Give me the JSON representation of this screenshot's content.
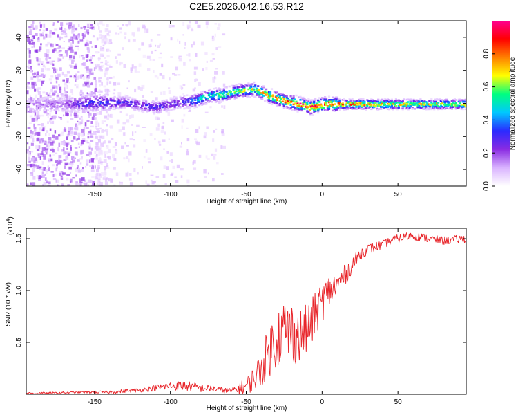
{
  "title": "C2E5.2026.042.16.53.R12",
  "chart_data": [
    {
      "type": "heatmap",
      "name": "spectrogram",
      "xlabel": "Height of straight line (km)",
      "ylabel": "Frequency (Hz)",
      "xlim": [
        -195,
        95
      ],
      "ylim": [
        -50,
        50
      ],
      "xticks": [
        -150,
        -100,
        -50,
        0,
        50
      ],
      "xtick_labels": [
        "-150",
        "-100",
        "-50",
        "0",
        "50"
      ],
      "yticks": [
        -40,
        -20,
        0,
        20,
        40
      ],
      "ytick_labels": [
        "-40",
        "-20",
        "0",
        "20",
        "40"
      ],
      "colorbar": {
        "label": "Normalized spectral amplitude",
        "range": [
          0,
          1
        ],
        "ticks": [
          0.0,
          0.2,
          0.4,
          0.6,
          0.8
        ],
        "tick_labels": [
          "0.0",
          "0.2",
          "0.4",
          "0.6",
          "0.8"
        ],
        "colors": [
          "#ffffff",
          "#d9b3ff",
          "#8a2be2",
          "#2a2aff",
          "#00c8ff",
          "#00ff80",
          "#ffff00",
          "#ff8000",
          "#ff0000",
          "#ff0090"
        ]
      },
      "ridge": {
        "x": [
          -195,
          -170,
          -150,
          -130,
          -110,
          -95,
          -85,
          -75,
          -65,
          -55,
          -45,
          -35,
          -25,
          -15,
          -8,
          0,
          10,
          30,
          60,
          95
        ],
        "frequency_hz": [
          0,
          0,
          1,
          1,
          -2,
          1,
          2,
          5,
          6,
          8,
          9,
          5,
          2,
          0,
          -2,
          0,
          0,
          0,
          0,
          0
        ],
        "peak_amplitude": [
          0.15,
          0.2,
          0.35,
          0.3,
          0.3,
          0.3,
          0.45,
          0.55,
          0.6,
          0.65,
          0.7,
          0.75,
          0.85,
          0.9,
          0.9,
          0.9,
          0.85,
          0.75,
          0.7,
          0.7
        ]
      },
      "noise_band_hz": [
        -50,
        50
      ],
      "noise_region_x": [
        -195,
        -140
      ]
    },
    {
      "type": "line",
      "name": "snr",
      "xlabel": "Height of straight line (km)",
      "ylabel": "SNR (10 * v/v)",
      "scale_label_base": "(x10",
      "scale_label_exp": "4",
      "scale_label_close": ")",
      "xlim": [
        -195,
        95
      ],
      "ylim": [
        0,
        1.6
      ],
      "xticks": [
        -150,
        -100,
        -50,
        0,
        50
      ],
      "xtick_labels": [
        "-150",
        "-100",
        "-50",
        "0",
        "50"
      ],
      "yticks": [
        0.5,
        1.0,
        1.5
      ],
      "ytick_labels": [
        "0.5",
        "1.0",
        "1.5"
      ],
      "color": "#e8262b",
      "series": [
        {
          "name": "SNR",
          "x": [
            -195,
            -180,
            -160,
            -140,
            -120,
            -110,
            -100,
            -90,
            -80,
            -70,
            -60,
            -50,
            -45,
            -40,
            -35,
            -30,
            -25,
            -20,
            -15,
            -10,
            -5,
            0,
            5,
            10,
            15,
            20,
            25,
            30,
            35,
            40,
            45,
            50,
            55,
            60,
            70,
            80,
            95
          ],
          "y": [
            0.01,
            0.01,
            0.02,
            0.02,
            0.04,
            0.06,
            0.08,
            0.08,
            0.06,
            0.05,
            0.03,
            0.08,
            0.15,
            0.25,
            0.42,
            0.55,
            0.62,
            0.6,
            0.55,
            0.62,
            0.75,
            0.9,
            1.0,
            1.05,
            1.15,
            1.25,
            1.35,
            1.4,
            1.42,
            1.44,
            1.48,
            1.5,
            1.52,
            1.53,
            1.5,
            1.48,
            1.5
          ],
          "noise_amplitude": [
            0.01,
            0.01,
            0.01,
            0.015,
            0.02,
            0.03,
            0.04,
            0.05,
            0.04,
            0.03,
            0.03,
            0.08,
            0.12,
            0.18,
            0.25,
            0.3,
            0.32,
            0.3,
            0.28,
            0.25,
            0.22,
            0.2,
            0.16,
            0.13,
            0.1,
            0.08,
            0.06,
            0.05,
            0.05,
            0.04,
            0.04,
            0.04,
            0.04,
            0.04,
            0.04,
            0.04,
            0.04
          ]
        }
      ]
    }
  ]
}
